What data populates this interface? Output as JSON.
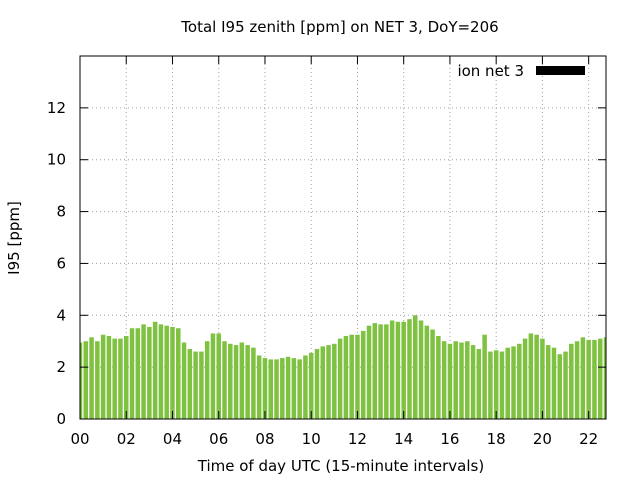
{
  "chart_data": {
    "type": "bar",
    "title": "Total I95 zenith [ppm] on NET 3, DoY=206",
    "xlabel": "Time of day UTC (15-minute intervals)",
    "ylabel": "I95 [ppm]",
    "xlim": [
      0,
      22.75
    ],
    "ylim": [
      0,
      14
    ],
    "xticks": [
      "00",
      "02",
      "04",
      "06",
      "08",
      "10",
      "12",
      "14",
      "16",
      "18",
      "20",
      "22"
    ],
    "yticks": [
      "0",
      "2",
      "4",
      "6",
      "8",
      "10",
      "12"
    ],
    "grid": true,
    "legend_position": "top-right",
    "bar_color": "#7fc241",
    "legend_color": "#000000",
    "series": [
      {
        "name": "ion net 3",
        "x": [
          0.0,
          0.25,
          0.5,
          0.75,
          1.0,
          1.25,
          1.5,
          1.75,
          2.0,
          2.25,
          2.5,
          2.75,
          3.0,
          3.25,
          3.5,
          3.75,
          4.0,
          4.25,
          4.5,
          4.75,
          5.0,
          5.25,
          5.5,
          5.75,
          6.0,
          6.25,
          6.5,
          6.75,
          7.0,
          7.25,
          7.5,
          7.75,
          8.0,
          8.25,
          8.5,
          8.75,
          9.0,
          9.25,
          9.5,
          9.75,
          10.0,
          10.25,
          10.5,
          10.75,
          11.0,
          11.25,
          11.5,
          11.75,
          12.0,
          12.25,
          12.5,
          12.75,
          13.0,
          13.25,
          13.5,
          13.75,
          14.0,
          14.25,
          14.5,
          14.75,
          15.0,
          15.25,
          15.5,
          15.75,
          16.0,
          16.25,
          16.5,
          16.75,
          17.0,
          17.25,
          17.5,
          17.75,
          18.0,
          18.25,
          18.5,
          18.75,
          19.0,
          19.25,
          19.5,
          19.75,
          20.0,
          20.25,
          20.5,
          20.75,
          21.0,
          21.25,
          21.5,
          21.75,
          22.0,
          22.25,
          22.5,
          22.75
        ],
        "values": [
          2.95,
          3.0,
          3.15,
          3.0,
          3.25,
          3.2,
          3.1,
          3.1,
          3.2,
          3.5,
          3.5,
          3.65,
          3.55,
          3.75,
          3.65,
          3.6,
          3.55,
          3.5,
          2.95,
          2.7,
          2.6,
          2.6,
          3.0,
          3.3,
          3.3,
          3.0,
          2.9,
          2.85,
          2.95,
          2.85,
          2.75,
          2.45,
          2.35,
          2.3,
          2.3,
          2.35,
          2.4,
          2.35,
          2.3,
          2.45,
          2.55,
          2.7,
          2.8,
          2.85,
          2.9,
          3.1,
          3.2,
          3.25,
          3.25,
          3.4,
          3.6,
          3.7,
          3.65,
          3.65,
          3.8,
          3.75,
          3.75,
          3.85,
          4.0,
          3.8,
          3.6,
          3.45,
          3.2,
          3.0,
          2.9,
          3.0,
          2.95,
          3.0,
          2.85,
          2.7,
          3.25,
          2.6,
          2.65,
          2.6,
          2.75,
          2.8,
          2.9,
          3.1,
          3.3,
          3.25,
          3.1,
          2.85,
          2.75,
          2.5,
          2.6,
          2.9,
          3.0,
          3.15,
          3.05,
          3.05,
          3.1,
          3.15
        ]
      }
    ]
  }
}
